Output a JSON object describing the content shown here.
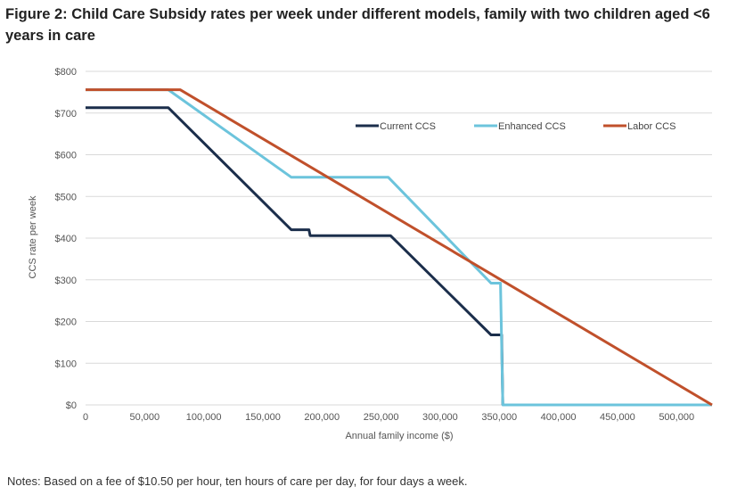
{
  "chart_data": {
    "type": "line",
    "title": "Figure 2: Child Care Subsidy rates per week under different models, family with two children aged <6 years in care",
    "xlabel": "Annual family income ($)",
    "ylabel": "CCS rate per week",
    "xlim": [
      0,
      530000
    ],
    "ylim": [
      0,
      800
    ],
    "xticks": [
      0,
      50000,
      100000,
      150000,
      200000,
      250000,
      300000,
      350000,
      400000,
      450000,
      500000
    ],
    "xtick_labels": [
      "0",
      "50,000",
      "100,000",
      "150,000",
      "200,000",
      "250,000",
      "300,000",
      "350,000",
      "400,000",
      "450,000",
      "500,000"
    ],
    "yticks": [
      0,
      100,
      200,
      300,
      400,
      500,
      600,
      700,
      800
    ],
    "ytick_labels": [
      "$0",
      "$100",
      "$200",
      "$300",
      "$400",
      "$500",
      "$600",
      "$700",
      "$800"
    ],
    "grid": "horizontal",
    "legend_position": "top-right",
    "series": [
      {
        "name": "Current CCS",
        "color": "#1b2e4b",
        "points": [
          [
            0,
            713
          ],
          [
            70000,
            713
          ],
          [
            174000,
            420
          ],
          [
            189000,
            420
          ],
          [
            190000,
            406
          ],
          [
            258000,
            406
          ],
          [
            343000,
            168
          ],
          [
            352000,
            168
          ],
          [
            353000,
            0
          ]
        ]
      },
      {
        "name": "Enhanced CCS",
        "color": "#6cc4dc",
        "points": [
          [
            0,
            756
          ],
          [
            70000,
            756
          ],
          [
            174000,
            546
          ],
          [
            256000,
            546
          ],
          [
            343000,
            292
          ],
          [
            351000,
            292
          ],
          [
            353000,
            0
          ],
          [
            530000,
            0
          ]
        ]
      },
      {
        "name": "Labor CCS",
        "color": "#c0502b",
        "points": [
          [
            0,
            756
          ],
          [
            80000,
            756
          ],
          [
            530000,
            0
          ]
        ]
      }
    ]
  },
  "notes": "Notes: Based on a fee of $10.50 per hour, ten hours of care per day, for four days a week."
}
